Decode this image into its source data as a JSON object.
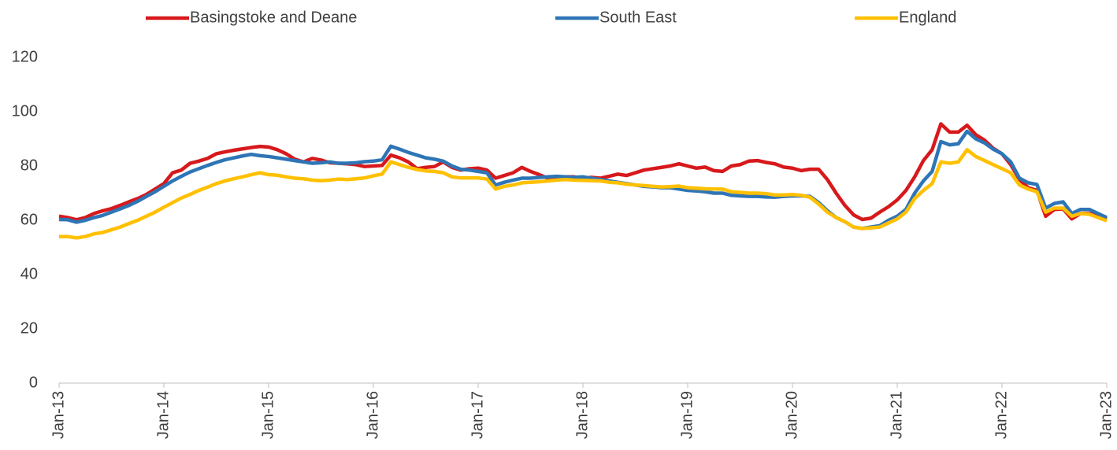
{
  "chart_data": {
    "type": "line",
    "categories": [
      "Jan-13",
      null,
      null,
      null,
      null,
      null,
      null,
      null,
      null,
      null,
      null,
      null,
      "Jan-14",
      null,
      null,
      null,
      null,
      null,
      null,
      null,
      null,
      null,
      null,
      null,
      "Jan-15",
      null,
      null,
      null,
      null,
      null,
      null,
      null,
      null,
      null,
      null,
      null,
      "Jan-16",
      null,
      null,
      null,
      null,
      null,
      null,
      null,
      null,
      null,
      null,
      null,
      "Jan-17",
      null,
      null,
      null,
      null,
      null,
      null,
      null,
      null,
      null,
      null,
      null,
      "Jan-18",
      null,
      null,
      null,
      null,
      null,
      null,
      null,
      null,
      null,
      null,
      null,
      "Jan-19",
      null,
      null,
      null,
      null,
      null,
      null,
      null,
      null,
      null,
      null,
      null,
      "Jan-20",
      null,
      null,
      null,
      null,
      null,
      null,
      null,
      null,
      null,
      null,
      null,
      "Jan-21",
      null,
      null,
      null,
      null,
      null,
      null,
      null,
      null,
      null,
      null,
      null,
      "Jan-22",
      null,
      null,
      null,
      null,
      null,
      null,
      null,
      null,
      null,
      null,
      null,
      "Jan-23"
    ],
    "series": [
      {
        "name": "Basingstoke and Deane",
        "color": "#d7191c",
        "values": [
          61.5,
          61,
          60.2,
          61,
          62.5,
          63.5,
          64.3,
          65.5,
          66.8,
          68,
          69.5,
          71.5,
          73.5,
          77.5,
          78.5,
          81,
          81.8,
          82.8,
          84.5,
          85.2,
          85.8,
          86.3,
          86.8,
          87.2,
          87,
          86,
          84.5,
          82.5,
          81.5,
          82.8,
          82.2,
          81.2,
          81,
          80.8,
          80.5,
          79.8,
          80,
          80.2,
          84,
          83,
          81.5,
          79,
          79.5,
          79.8,
          81.5,
          79.5,
          78.5,
          79,
          79.2,
          78.5,
          75.5,
          76.5,
          77.5,
          79.5,
          78,
          76.8,
          75.5,
          75.8,
          76,
          76,
          75.5,
          75.8,
          75.5,
          76.2,
          77,
          76.5,
          77.5,
          78.5,
          79,
          79.5,
          80,
          80.8,
          80,
          79.2,
          79.6,
          78.3,
          78,
          80,
          80.5,
          81.8,
          82,
          81.3,
          80.8,
          79.6,
          79.2,
          78.3,
          78.8,
          78.8,
          75,
          70,
          65.5,
          62,
          60.3,
          60.8,
          63,
          65,
          67.5,
          71,
          76,
          82,
          86,
          95.5,
          92.5,
          92.5,
          95,
          91.5,
          89.5,
          86.5,
          84.5,
          80.5,
          75,
          72,
          71,
          61.5,
          64,
          64.2,
          60.5,
          62.5,
          62.5,
          61.5,
          60.5
        ]
      },
      {
        "name": "South East",
        "color": "#2e75b6",
        "values": [
          60.3,
          60.2,
          59.3,
          60,
          61,
          61.8,
          63,
          64.2,
          65.5,
          67,
          68.8,
          70.5,
          72.5,
          74.5,
          76.2,
          77.8,
          79,
          80.2,
          81.3,
          82.3,
          83,
          83.7,
          84.3,
          83.8,
          83.5,
          83,
          82.5,
          82,
          81.5,
          81,
          81.2,
          81.5,
          81,
          81,
          81.2,
          81.6,
          81.8,
          82.3,
          87.3,
          86.2,
          85,
          84,
          83,
          82.5,
          81.8,
          80,
          78.8,
          78.5,
          78,
          77.5,
          73,
          74,
          74.8,
          75.5,
          75.5,
          75.8,
          76,
          76.2,
          76,
          75.8,
          76,
          75.5,
          75,
          74.5,
          74,
          73.5,
          73,
          72.5,
          72.3,
          72,
          72,
          71.5,
          71,
          70.8,
          70.5,
          70,
          70,
          69.2,
          69,
          68.8,
          68.8,
          68.6,
          68.5,
          68.8,
          69,
          69,
          68.8,
          66.5,
          63.5,
          61,
          59.5,
          57.5,
          57,
          57.5,
          58,
          60,
          61.5,
          64,
          70,
          74.5,
          78,
          89,
          87.8,
          88.2,
          92.8,
          90,
          88.5,
          86.2,
          84.5,
          81.5,
          75.5,
          73.8,
          73.2,
          64.5,
          66.2,
          66.8,
          62.5,
          64,
          64,
          62.5,
          61
        ]
      },
      {
        "name": "England",
        "color": "#ffc000",
        "values": [
          54,
          54,
          53.5,
          54,
          55,
          55.5,
          56.5,
          57.5,
          58.8,
          60,
          61.5,
          63,
          64.8,
          66.5,
          68.2,
          69.5,
          71,
          72.2,
          73.5,
          74.5,
          75.3,
          76,
          76.8,
          77.5,
          76.8,
          76.6,
          76,
          75.5,
          75.3,
          74.8,
          74.6,
          74.8,
          75.2,
          75,
          75.3,
          75.6,
          76.4,
          77,
          81.5,
          80.5,
          79.5,
          78.7,
          78.2,
          78,
          77.5,
          76,
          75.6,
          75.6,
          75.6,
          75.2,
          71.5,
          72.5,
          73,
          73.8,
          74,
          74.2,
          74.5,
          74.8,
          75,
          74.8,
          74.7,
          74.6,
          74.5,
          74,
          73.8,
          73.3,
          73,
          72.8,
          72.5,
          72.3,
          72.4,
          72.6,
          72,
          71.8,
          71.6,
          71.5,
          71.5,
          70.5,
          70.3,
          70,
          70,
          69.8,
          69.3,
          69.3,
          69.5,
          69.2,
          68.5,
          66,
          63,
          61,
          59.5,
          57.5,
          57,
          57.2,
          57.5,
          59,
          60.5,
          63,
          68,
          71,
          73.5,
          81.5,
          81,
          81.5,
          86,
          83.5,
          82,
          80.5,
          79,
          77.5,
          73,
          71.5,
          70.5,
          63,
          64.5,
          64.5,
          61.5,
          62.5,
          62.2,
          61,
          59.8
        ]
      }
    ],
    "ylim": [
      0,
      120
    ],
    "yticks": [
      0,
      20,
      40,
      60,
      80,
      100,
      120
    ],
    "grid": false,
    "legend": "top"
  }
}
